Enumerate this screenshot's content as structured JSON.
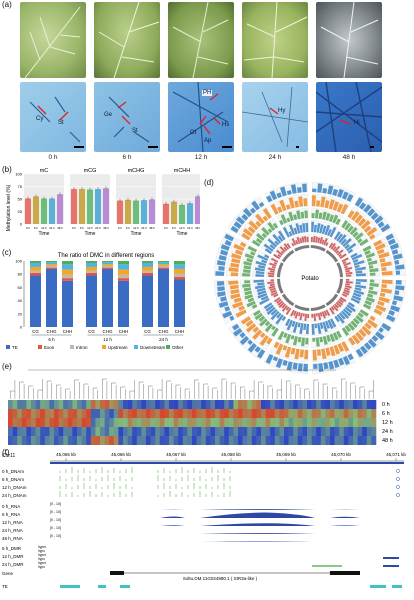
{
  "panels": {
    "a": "(a)",
    "b": "(b)",
    "c": "(c)",
    "d": "(d)",
    "e": "(e)",
    "f": "(f)"
  },
  "panel_a": {
    "time_labels": [
      "0 h",
      "6 h",
      "12 h",
      "24 h",
      "48 h"
    ],
    "annotations": {
      "cy": "Cy",
      "st1": "St",
      "ge": "Ge",
      "st2": "St",
      "ph": "PH",
      "gt": "Gt",
      "ap": "Ap",
      "hs": "Hs",
      "hy": "Hy",
      "hi": "Hi"
    }
  },
  "chart_data": [
    {
      "id": "b",
      "type": "bar",
      "ylabel": "Methylation level (%)",
      "xlabel": "Time",
      "subplots": [
        "mC",
        "mCG",
        "mCHG",
        "mCHH"
      ],
      "categories": [
        "0 h",
        "6 h",
        "12 h",
        "24 h",
        "48 h"
      ],
      "colors": [
        "#e8736b",
        "#c9a94a",
        "#6bbf7a",
        "#5bb0d8",
        "#b98bd6"
      ],
      "values": [
        [
          12,
          13,
          12,
          12,
          14
        ],
        [
          82,
          82,
          81,
          82,
          84
        ],
        [
          55,
          57,
          55,
          56,
          58
        ],
        [
          3.8,
          4.2,
          3.6,
          3.9,
          5.2
        ]
      ],
      "ylim": [
        0,
        100
      ]
    },
    {
      "id": "c",
      "type": "bar",
      "title": "The ratio of DMC in different regions",
      "categories": [
        "CG",
        "CHG",
        "CHH",
        "CG",
        "CHG",
        "CHH",
        "CG",
        "CHG",
        "CHH"
      ],
      "groups": [
        "6 h",
        "12 h",
        "24 h"
      ],
      "stacked": true,
      "series": [
        {
          "name": "TE",
          "color": "#3b6cc4",
          "values": [
            78,
            88,
            70,
            78,
            88,
            70,
            78,
            88,
            72
          ]
        },
        {
          "name": "Exon",
          "color": "#e8533b",
          "values": [
            4,
            2,
            4,
            4,
            2,
            4,
            4,
            2,
            4
          ]
        },
        {
          "name": "Intron",
          "color": "#b9b9b9",
          "values": [
            3,
            2,
            5,
            3,
            2,
            5,
            3,
            2,
            5
          ]
        },
        {
          "name": "Upstream",
          "color": "#f5a623",
          "values": [
            6,
            3,
            8,
            6,
            3,
            8,
            6,
            3,
            7
          ]
        },
        {
          "name": "Downstream",
          "color": "#4fb3e8",
          "values": [
            6,
            3,
            8,
            6,
            3,
            8,
            6,
            3,
            7
          ]
        },
        {
          "name": "Other",
          "color": "#4caf50",
          "values": [
            3,
            2,
            5,
            3,
            2,
            5,
            3,
            2,
            5
          ]
        }
      ],
      "ylim": [
        0,
        100
      ]
    },
    {
      "id": "d",
      "type": "circos",
      "center_label": "Potato",
      "chromosome_count": 12
    },
    {
      "id": "e",
      "type": "heatmap",
      "rows": [
        "0 h",
        "6 h",
        "12 h",
        "24 h",
        "48 h"
      ]
    },
    {
      "id": "f",
      "type": "genome-browser",
      "chromosome": "Chr11",
      "ticks": [
        "45,065 kb",
        "45,066 kb",
        "45,067 kb",
        "45,068 kb",
        "45,069 kb",
        "45,070 kb",
        "45,071 kb"
      ],
      "tracks": {
        "dna": [
          "0 h_DNAm",
          "6 h_DNAm",
          "12 h_DNAm",
          "24 h_DNAm"
        ],
        "rna": [
          "0 h_RNA",
          "6 h_RNA",
          "12 h_RNA",
          "24 h_RNA",
          "48 h_RNA"
        ],
        "rna_range": "[0 - 10]",
        "dmr": [
          "6 h_DMR",
          "12 h_DMR",
          "24 h_DMR"
        ],
        "hyper": "hyper",
        "hypo": "hypo"
      },
      "gene_track_label": "Gene",
      "gene_name": "Soltu.DM.11G024990.1 ( StR3a-like )",
      "te_track_label": "TE"
    }
  ],
  "colors": {
    "leaf": "#9bb36a",
    "micro_bg": "#8ec3e6",
    "heat_red": "#d62f2f",
    "heat_blue": "#2f6fc4",
    "rna_fill": "#2c49a8",
    "dna_green": "#5bb24f",
    "te_teal": "#3fc2c0"
  }
}
